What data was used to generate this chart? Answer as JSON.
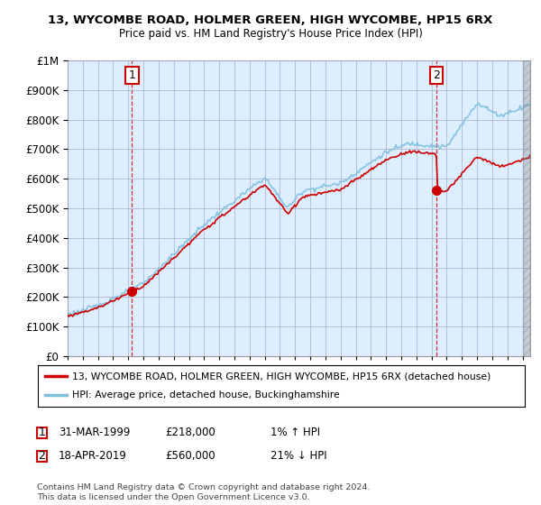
{
  "title": "13, WYCOMBE ROAD, HOLMER GREEN, HIGH WYCOMBE, HP15 6RX",
  "subtitle": "Price paid vs. HM Land Registry's House Price Index (HPI)",
  "legend_line1": "13, WYCOMBE ROAD, HOLMER GREEN, HIGH WYCOMBE, HP15 6RX (detached house)",
  "legend_line2": "HPI: Average price, detached house, Buckinghamshire",
  "annotation1_date": "31-MAR-1999",
  "annotation1_price": "£218,000",
  "annotation1_hpi": "1% ↑ HPI",
  "annotation2_date": "18-APR-2019",
  "annotation2_price": "£560,000",
  "annotation2_hpi": "21% ↓ HPI",
  "footer": "Contains HM Land Registry data © Crown copyright and database right 2024.\nThis data is licensed under the Open Government Licence v3.0.",
  "hpi_color": "#7fbfdf",
  "price_color": "#cc0000",
  "marker_color": "#cc0000",
  "sale1_x": 1999.25,
  "sale1_y": 218000,
  "sale2_x": 2019.33,
  "sale2_y": 560000,
  "ylim": [
    0,
    1000000
  ],
  "xlim_start": 1995,
  "xlim_end": 2025.5,
  "xticks": [
    1995,
    1996,
    1997,
    1998,
    1999,
    2000,
    2001,
    2002,
    2003,
    2004,
    2005,
    2006,
    2007,
    2008,
    2009,
    2010,
    2011,
    2012,
    2013,
    2014,
    2015,
    2016,
    2017,
    2018,
    2019,
    2020,
    2021,
    2022,
    2023,
    2024,
    2025
  ],
  "yticks": [
    0,
    100000,
    200000,
    300000,
    400000,
    500000,
    600000,
    700000,
    800000,
    900000,
    1000000
  ],
  "chart_bg_color": "#ddeeff",
  "background_color": "#ffffff",
  "grid_color": "#aaaacc"
}
